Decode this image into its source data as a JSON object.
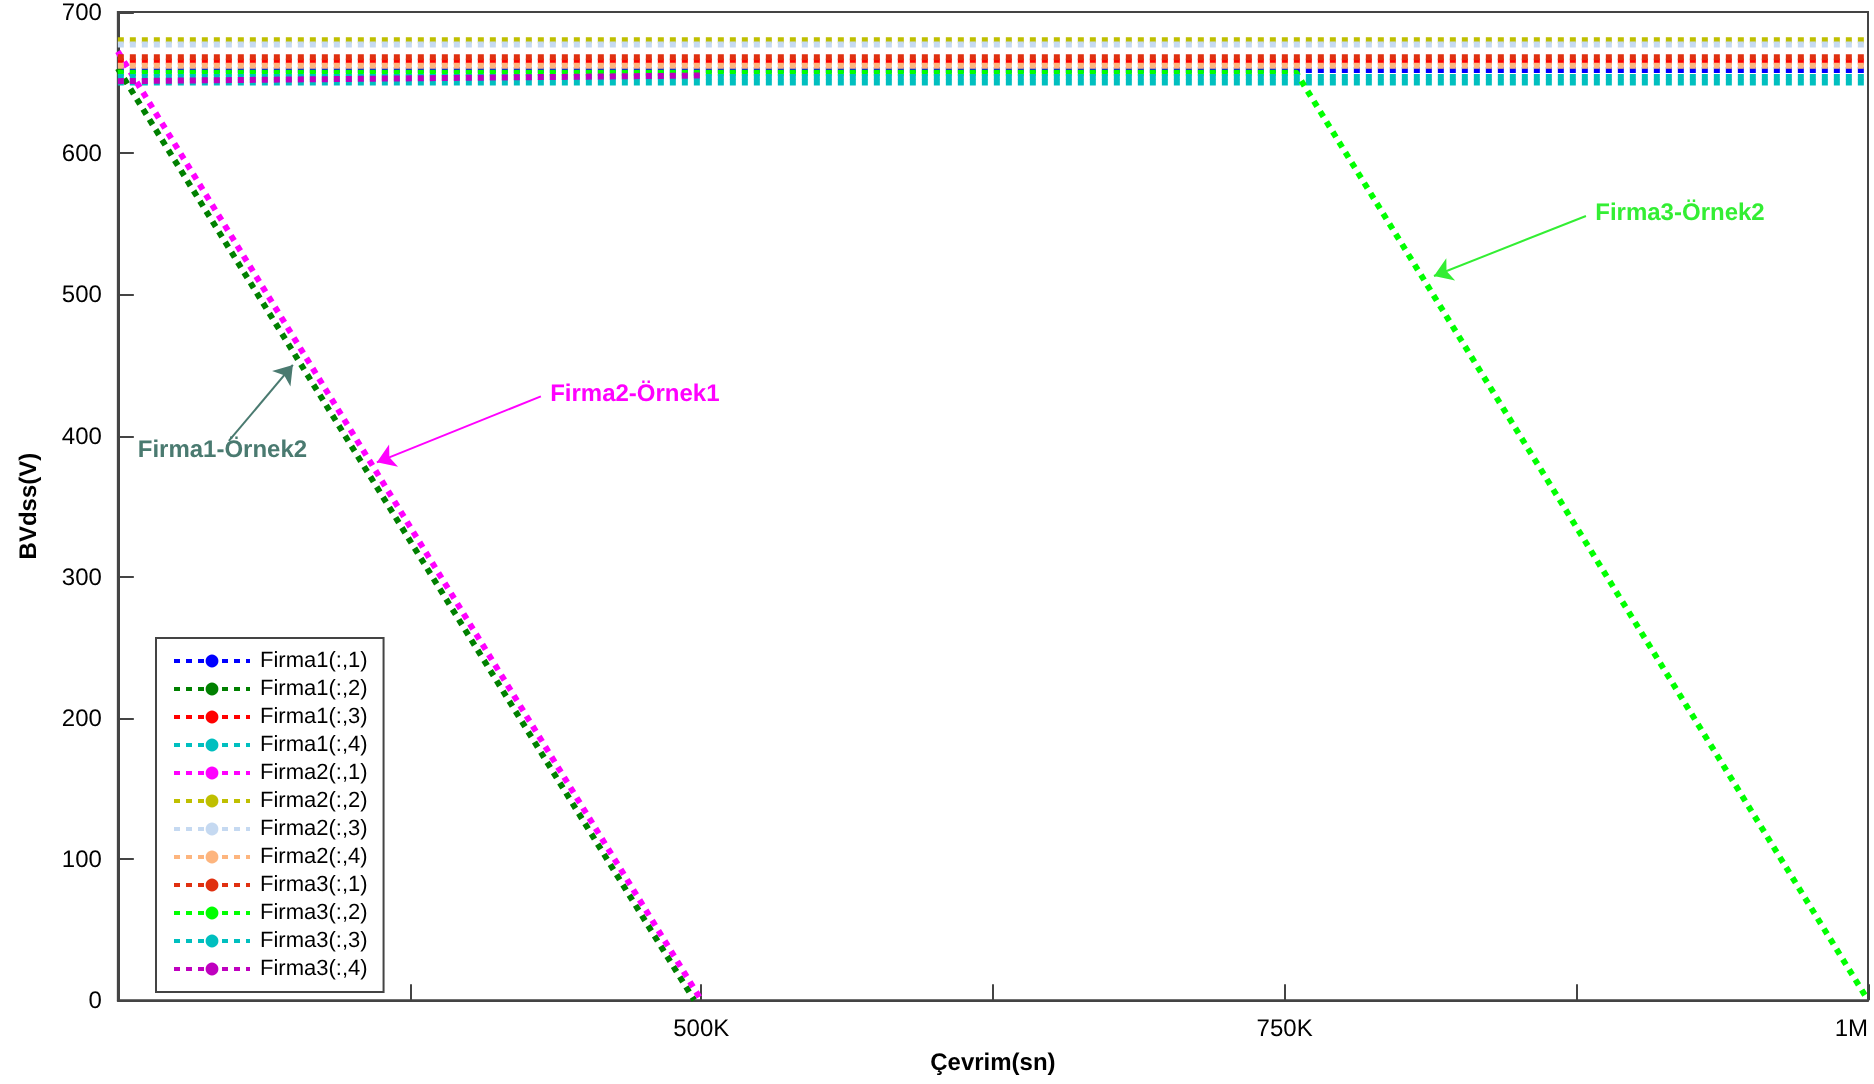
{
  "chart_data": {
    "type": "line",
    "xlabel": "Çevrim(sn)",
    "ylabel": "BVdss(V)",
    "xlim": [
      250000,
      1000000
    ],
    "xticks": [
      {
        "value": 375000,
        "label": null
      },
      {
        "value": 500000,
        "label": "500K"
      },
      {
        "value": 625000,
        "label": null
      },
      {
        "value": 750000,
        "label": "750K"
      },
      {
        "value": 875000,
        "label": null
      },
      {
        "value": 1000000,
        "label": "1M"
      }
    ],
    "ylim": [
      0,
      700
    ],
    "yticks": [
      0,
      100,
      200,
      300,
      400,
      500,
      600,
      700
    ],
    "grid": false,
    "legend": "bottom left",
    "line_style": "dotted",
    "marker": "none",
    "series": [
      {
        "name": "Firma1(:,1)",
        "color": "#0000ff",
        "x": [
          250000,
          750000,
          1000000
        ],
        "values": [
          659,
          659,
          659
        ]
      },
      {
        "name": "Firma1(:,2)",
        "color": "#008000",
        "x": [
          250000,
          497000
        ],
        "values": [
          660,
          0
        ]
      },
      {
        "name": "Firma1(:,3)",
        "color": "#ff0000",
        "x": [
          250000,
          1000000
        ],
        "values": [
          665,
          665
        ]
      },
      {
        "name": "Firma1(:,4)",
        "color": "#00bfbf",
        "x": [
          250000,
          1000000
        ],
        "values": [
          650,
          650
        ]
      },
      {
        "name": "Firma2(:,1)",
        "color": "#ff00ff",
        "x": [
          250000,
          500000
        ],
        "values": [
          672,
          0
        ]
      },
      {
        "name": "Firma2(:,2)",
        "color": "#bfbf00",
        "x": [
          250000,
          1000000
        ],
        "values": [
          680,
          680
        ]
      },
      {
        "name": "Firma2(:,3)",
        "color": "#c5d9f1",
        "x": [
          250000,
          1000000
        ],
        "values": [
          677,
          677
        ]
      },
      {
        "name": "Firma2(:,4)",
        "color": "#fdb57e",
        "x": [
          250000,
          1000000
        ],
        "values": [
          662,
          662
        ]
      },
      {
        "name": "Firma3(:,1)",
        "color": "#e03010",
        "x": [
          250000,
          1000000
        ],
        "values": [
          668,
          668
        ]
      },
      {
        "name": "Firma3(:,2)",
        "color": "#00ff00",
        "x": [
          250000,
          755000,
          1000000
        ],
        "values": [
          657,
          657,
          0
        ]
      },
      {
        "name": "Firma3(:,3)",
        "color": "#00bfbf",
        "x": [
          250000,
          1000000
        ],
        "values": [
          654,
          654
        ]
      },
      {
        "name": "Firma3(:,4)",
        "color": "#bf00bf",
        "x": [
          250000,
          500000
        ],
        "values": [
          651,
          655
        ]
      }
    ],
    "annotations": [
      {
        "text": "Firma1-Örnek2",
        "x": 325000,
        "y": 450
      },
      {
        "text": "Firma2-Örnek1",
        "x": 361000,
        "y": 381
      },
      {
        "text": "Firma3-Örnek2",
        "x": 814000,
        "y": 513
      }
    ]
  }
}
